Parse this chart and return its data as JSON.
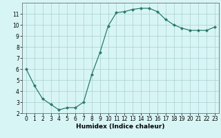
{
  "x": [
    0,
    1,
    2,
    3,
    4,
    5,
    6,
    7,
    8,
    9,
    10,
    11,
    12,
    13,
    14,
    15,
    16,
    17,
    18,
    19,
    20,
    21,
    22,
    23
  ],
  "y": [
    6.0,
    4.5,
    3.3,
    2.8,
    2.3,
    2.5,
    2.5,
    3.0,
    5.5,
    7.5,
    9.9,
    11.1,
    11.2,
    11.4,
    11.5,
    11.5,
    11.2,
    10.5,
    10.0,
    9.7,
    9.5,
    9.5,
    9.5,
    9.8
  ],
  "line_color": "#2a7a6b",
  "marker": "D",
  "marker_size": 2.0,
  "bg_color": "#d8f5f5",
  "grid_color": "#aacfcf",
  "xlabel": "Humidex (Indice chaleur)",
  "xlim": [
    -0.5,
    23.5
  ],
  "ylim": [
    2,
    12
  ],
  "yticks": [
    2,
    3,
    4,
    5,
    6,
    7,
    8,
    9,
    10,
    11
  ],
  "xticks": [
    0,
    1,
    2,
    3,
    4,
    5,
    6,
    7,
    8,
    9,
    10,
    11,
    12,
    13,
    14,
    15,
    16,
    17,
    18,
    19,
    20,
    21,
    22,
    23
  ],
  "axis_fontsize": 6.5,
  "tick_fontsize": 5.5
}
